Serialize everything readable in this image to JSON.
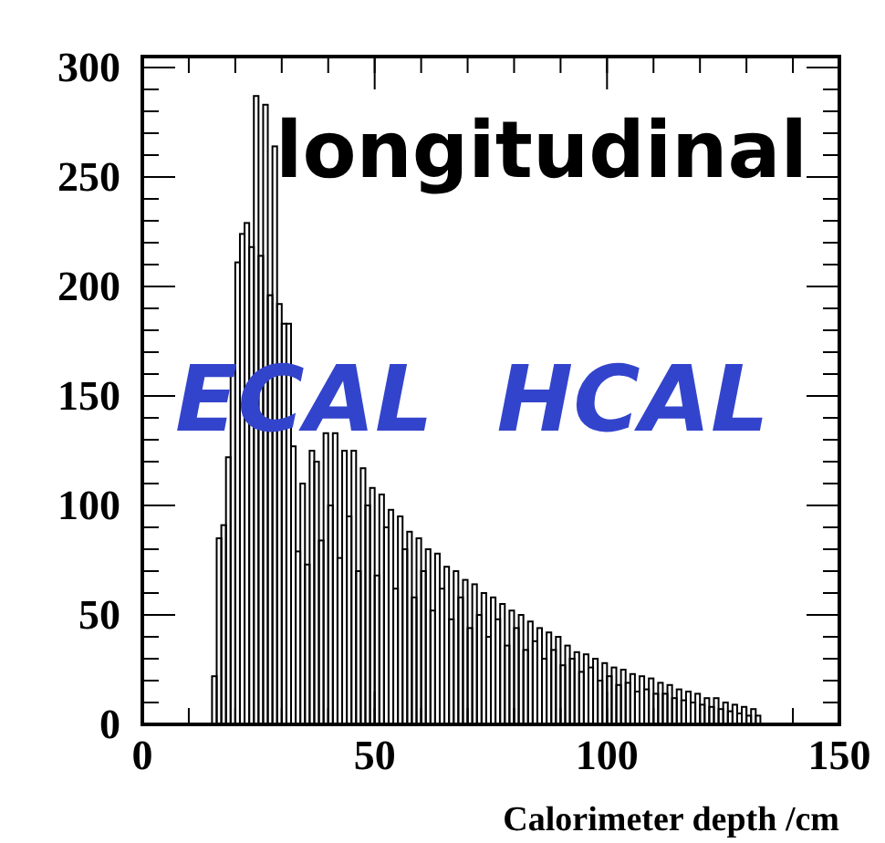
{
  "chart_data": {
    "type": "histogram",
    "xlabel": "Calorimeter depth /cm",
    "annotations": [
      "longitudinal",
      "ECAL  HCAL"
    ],
    "color": "#000000",
    "bins": [
      15,
      16,
      17,
      18,
      19,
      20,
      21,
      22,
      23,
      24,
      25,
      26,
      27,
      28,
      29,
      30,
      31,
      32,
      33,
      34,
      35,
      36,
      37,
      38,
      39,
      40,
      41,
      42,
      43,
      44,
      45,
      46,
      47,
      48,
      49,
      50,
      51,
      52,
      53,
      54,
      55,
      56,
      57,
      58,
      59,
      60,
      61,
      62,
      63,
      64,
      65,
      66,
      67,
      68,
      69,
      70,
      71,
      72,
      73,
      74,
      75,
      76,
      77,
      78,
      79,
      80,
      81,
      82,
      83,
      84,
      85,
      86,
      87,
      88,
      89,
      90,
      91,
      92,
      93,
      94,
      95,
      96,
      97,
      98,
      99,
      100,
      101,
      102,
      103,
      104,
      105,
      106,
      107,
      108,
      109,
      110,
      111,
      112,
      113,
      114,
      115,
      116,
      117,
      118,
      119,
      120,
      121,
      122,
      123,
      124,
      125,
      126,
      127,
      128,
      129,
      130,
      131,
      132,
      133
    ],
    "values": [
      22,
      85,
      91,
      122,
      161,
      211,
      224,
      229,
      218,
      287,
      214,
      283,
      196,
      264,
      192,
      183,
      183,
      127,
      79,
      110,
      73,
      125,
      120,
      84,
      133,
      100,
      133,
      76,
      125,
      95,
      125,
      70,
      117,
      100,
      108,
      68,
      105,
      90,
      98,
      62,
      95,
      80,
      88,
      58,
      85,
      70,
      80,
      52,
      78,
      62,
      72,
      48,
      70,
      58,
      66,
      44,
      64,
      50,
      60,
      40,
      58,
      48,
      55,
      36,
      52,
      44,
      50,
      34,
      47,
      38,
      44,
      30,
      42,
      34,
      40,
      27,
      36,
      30,
      33,
      24,
      32,
      26,
      30,
      20,
      28,
      22,
      26,
      18,
      25,
      19,
      23,
      15,
      22,
      16,
      21,
      14,
      19,
      14,
      18,
      12,
      16,
      11,
      15,
      10,
      14,
      9,
      12,
      8,
      12,
      7,
      10,
      6,
      9,
      5,
      8,
      4,
      7,
      4
    ],
    "xlim": [
      0,
      150
    ],
    "xticks": [
      0,
      50,
      100,
      150
    ],
    "ylim": [
      0,
      305
    ],
    "yticks": [
      0,
      50,
      100,
      150,
      200,
      250,
      300
    ]
  }
}
